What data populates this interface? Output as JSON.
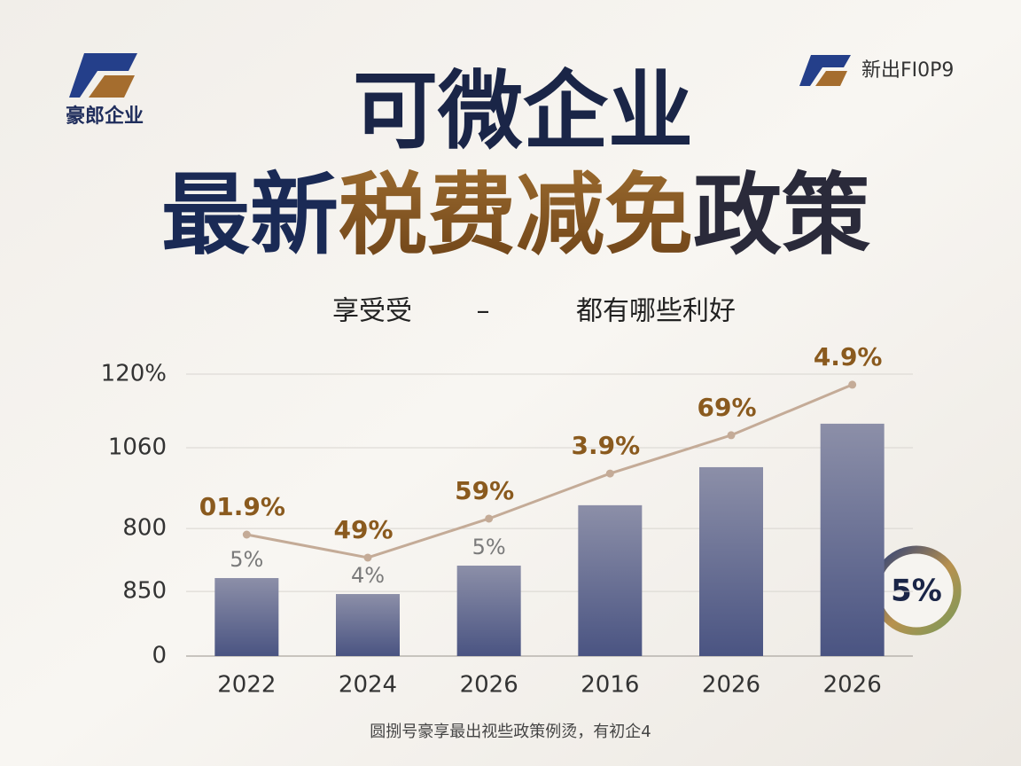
{
  "logo_text": "豪郎企业",
  "top_right_text": "新出FI0P9",
  "title_line1": "可微企业",
  "title_line2": [
    "最新",
    "税费减免",
    "政策"
  ],
  "subtitle": [
    "享受受",
    "–",
    "都有哪些利好"
  ],
  "badge": "5%",
  "footer": "圆捌号豪享最出视些政策例烫，有初企4",
  "chart_data": {
    "type": "bar",
    "categories": [
      "2022",
      "2024",
      "2026",
      "2016",
      "2026",
      "2026"
    ],
    "values": [
      332,
      264,
      385,
      642,
      804,
      989
    ],
    "bar_labels": [
      "5%",
      "4%",
      "5%",
      null,
      null,
      null
    ],
    "color": "#5a6389",
    "line": {
      "values": [
        517,
        419,
        585,
        777,
        940,
        1155
      ],
      "color": "#c4ab97",
      "annotations": [
        "01.9%",
        "49%",
        "59%",
        "3.9%",
        "69%",
        "4.9%"
      ]
    },
    "ylim": [
      0,
      1200
    ],
    "yticks": [
      0,
      {
        "value": 275,
        "label": "850"
      },
      {
        "value": 543,
        "label": "800"
      },
      {
        "value": 887,
        "label": "1060"
      },
      {
        "value": 1200,
        "label": "120%"
      }
    ],
    "grid": true
  }
}
